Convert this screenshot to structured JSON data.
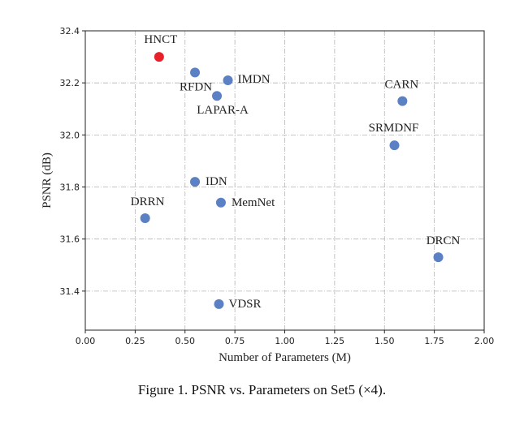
{
  "chart_data": {
    "type": "scatter",
    "xlabel": "Number of Parameters (M)",
    "ylabel": "PSNR (dB)",
    "xlim": [
      0.0,
      2.0
    ],
    "ylim": [
      31.25,
      32.4
    ],
    "xticks": [
      "0.00",
      "0.25",
      "0.50",
      "0.75",
      "1.00",
      "1.25",
      "1.50",
      "1.75",
      "2.00"
    ],
    "yticks": [
      "31.4",
      "31.6",
      "31.8",
      "32.0",
      "32.2",
      "32.4"
    ],
    "grid": true,
    "points": [
      {
        "name": "HNCT",
        "x": 0.37,
        "y": 32.3,
        "highlight": true
      },
      {
        "name": "RFDN",
        "x": 0.55,
        "y": 32.24,
        "highlight": false
      },
      {
        "name": "IMDN",
        "x": 0.715,
        "y": 32.21,
        "highlight": false
      },
      {
        "name": "LAPAR-A",
        "x": 0.66,
        "y": 32.15,
        "highlight": false
      },
      {
        "name": "CARN",
        "x": 1.59,
        "y": 32.13,
        "highlight": false
      },
      {
        "name": "SRMDNF",
        "x": 1.55,
        "y": 31.96,
        "highlight": false
      },
      {
        "name": "IDN",
        "x": 0.55,
        "y": 31.82,
        "highlight": false
      },
      {
        "name": "MemNet",
        "x": 0.68,
        "y": 31.74,
        "highlight": false
      },
      {
        "name": "DRRN",
        "x": 0.3,
        "y": 31.68,
        "highlight": false
      },
      {
        "name": "DRCN",
        "x": 1.77,
        "y": 31.53,
        "highlight": false
      },
      {
        "name": "VDSR",
        "x": 0.67,
        "y": 31.35,
        "highlight": false
      }
    ],
    "colors": {
      "default": "#5b80c4",
      "highlight": "#e8202a",
      "grid": "#b5b5b5"
    }
  },
  "caption": "Figure 1. PSNR vs. Parameters on Set5 (×4)."
}
